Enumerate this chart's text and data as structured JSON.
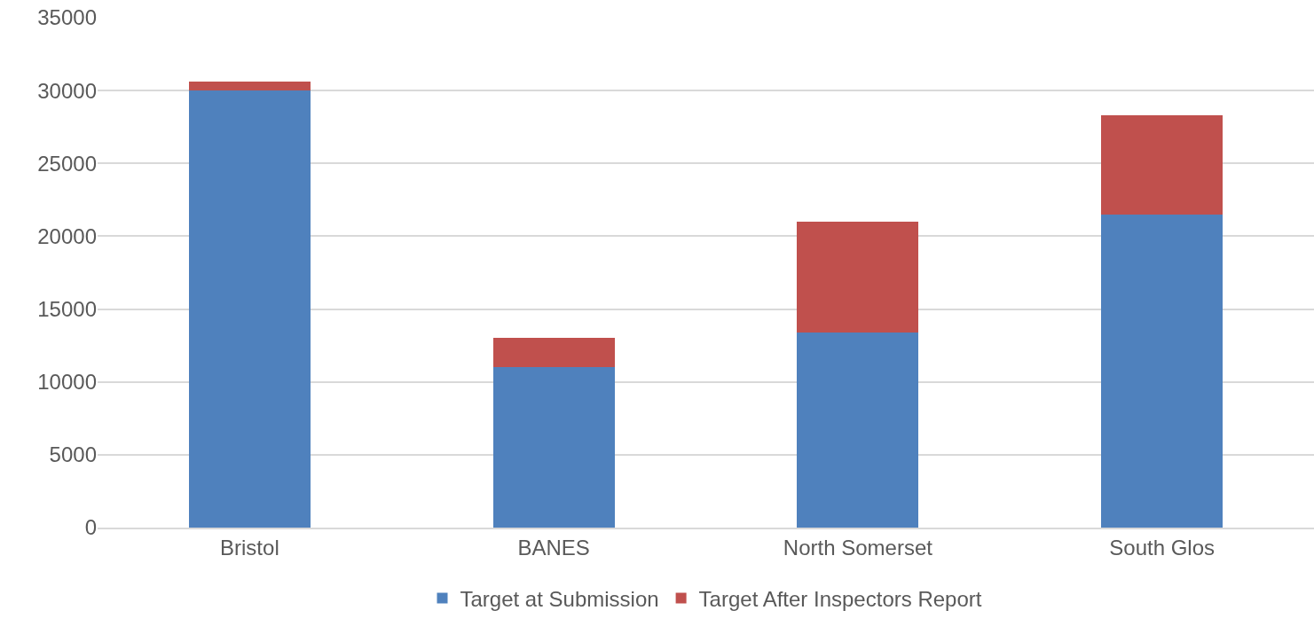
{
  "chart_data": {
    "type": "bar",
    "stacked": true,
    "categories": [
      "Bristol",
      "BANES",
      "North Somerset",
      "South Glos"
    ],
    "series": [
      {
        "name": "Target at Submission",
        "color": "#4f81bd",
        "values": [
          30000,
          11000,
          13400,
          21500
        ]
      },
      {
        "name": "Target After Inspectors Report",
        "color": "#c0504d",
        "values": [
          600,
          2000,
          7600,
          6800
        ]
      }
    ],
    "ylim": [
      0,
      35000
    ],
    "yticks": [
      0,
      5000,
      10000,
      15000,
      20000,
      25000,
      30000,
      35000
    ],
    "grid": "y",
    "legend": "bottom"
  }
}
